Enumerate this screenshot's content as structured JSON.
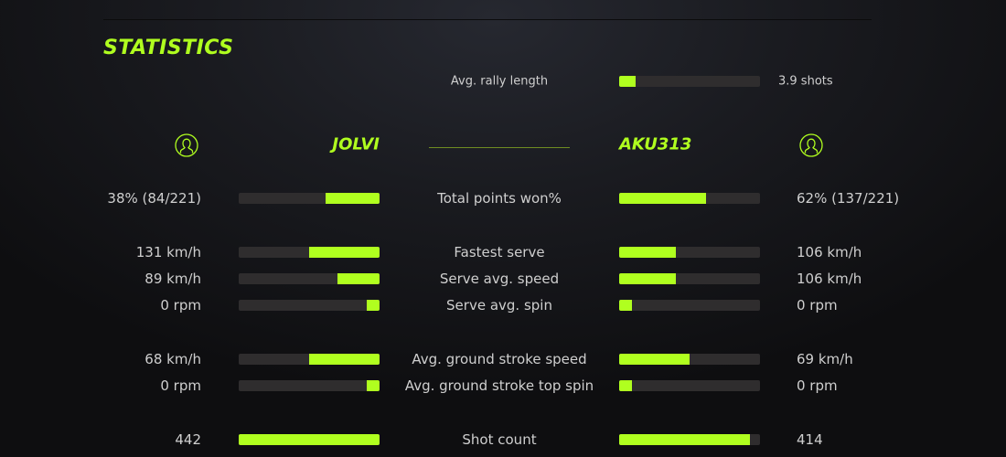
{
  "title": "STATISTICS",
  "accent_color": "#b0ff1f",
  "rally": {
    "label": "Avg. rally length",
    "value": "3.9 shots",
    "fill": 0.12
  },
  "players": {
    "left": {
      "name": "JOLVI",
      "icon": "user-circle-icon"
    },
    "right": {
      "name": "AKU313",
      "icon": "user-circle-icon"
    }
  },
  "stats": [
    {
      "label": "Total points won%",
      "left": "38% (84/221)",
      "right": "62% (137/221)",
      "left_fill": 0.38,
      "right_fill": 0.62
    },
    {
      "label": "Fastest serve",
      "left": "131 km/h",
      "right": "106 km/h",
      "left_fill": 0.5,
      "right_fill": 0.4
    },
    {
      "label": "Serve avg. speed",
      "left": "89 km/h",
      "right": "106 km/h",
      "left_fill": 0.3,
      "right_fill": 0.4
    },
    {
      "label": "Serve avg. spin",
      "left": "0 rpm",
      "right": "0 rpm",
      "left_fill": 0.09,
      "right_fill": 0.09
    },
    {
      "label": "Avg. ground stroke speed",
      "left": "68 km/h",
      "right": "69 km/h",
      "left_fill": 0.5,
      "right_fill": 0.5
    },
    {
      "label": "Avg. ground stroke top spin",
      "left": "0 rpm",
      "right": "0 rpm",
      "left_fill": 0.09,
      "right_fill": 0.09
    },
    {
      "label": "Shot count",
      "left": "442",
      "right": "414",
      "left_fill": 1.0,
      "right_fill": 0.93
    }
  ]
}
